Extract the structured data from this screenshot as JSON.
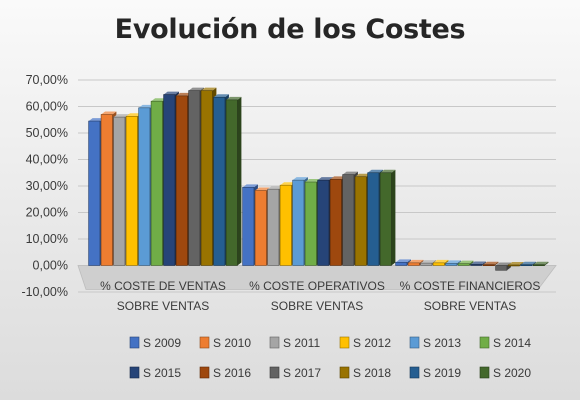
{
  "chart_data": {
    "type": "bar",
    "title": "Evolución de los Costes",
    "categories": [
      {
        "line1": "% COSTE DE VENTAS",
        "line2": "SOBRE VENTAS"
      },
      {
        "line1": "% COSTE OPERATIVOS",
        "line2": "SOBRE VENTAS"
      },
      {
        "line1": "% COSTE FINANCIEROS",
        "line2": "SOBRE VENTAS"
      }
    ],
    "ylim": [
      -10,
      70
    ],
    "yticks": [
      70,
      60,
      50,
      40,
      30,
      20,
      10,
      0,
      -10
    ],
    "ytick_labels": [
      "70,00%",
      "60,00%",
      "50,00%",
      "40,00%",
      "30,00%",
      "20,00%",
      "10,00%",
      "0,00%",
      "-10,00%"
    ],
    "grid": true,
    "legend_position": "bottom",
    "style": "3d-clustered-column",
    "series": [
      {
        "name": "S 2009",
        "color": "#4472C4",
        "values": [
          54.5,
          29.5,
          1.2
        ]
      },
      {
        "name": "S 2010",
        "color": "#ED7D31",
        "values": [
          57.0,
          28.3,
          1.0
        ]
      },
      {
        "name": "S 2011",
        "color": "#A5A5A5",
        "values": [
          56.0,
          28.8,
          0.9
        ]
      },
      {
        "name": "S 2012",
        "color": "#FFC000",
        "values": [
          56.3,
          30.3,
          1.0
        ]
      },
      {
        "name": "S 2013",
        "color": "#5B9BD5",
        "values": [
          59.5,
          32.2,
          0.8
        ]
      },
      {
        "name": "S 2014",
        "color": "#70AD47",
        "values": [
          62.0,
          31.5,
          0.7
        ]
      },
      {
        "name": "S 2015",
        "color": "#264478",
        "values": [
          64.5,
          32.2,
          0.4
        ]
      },
      {
        "name": "S 2016",
        "color": "#9E480E",
        "values": [
          64.0,
          32.5,
          0.3
        ]
      },
      {
        "name": "S 2017",
        "color": "#636363",
        "values": [
          66.0,
          34.3,
          -1.8
        ]
      },
      {
        "name": "S 2018",
        "color": "#997300",
        "values": [
          66.0,
          33.5,
          0.2
        ]
      },
      {
        "name": "S 2019",
        "color": "#255E91",
        "values": [
          63.5,
          35.0,
          0.3
        ]
      },
      {
        "name": "S 2020",
        "color": "#43682B",
        "values": [
          62.5,
          35.0,
          0.3
        ]
      }
    ]
  }
}
